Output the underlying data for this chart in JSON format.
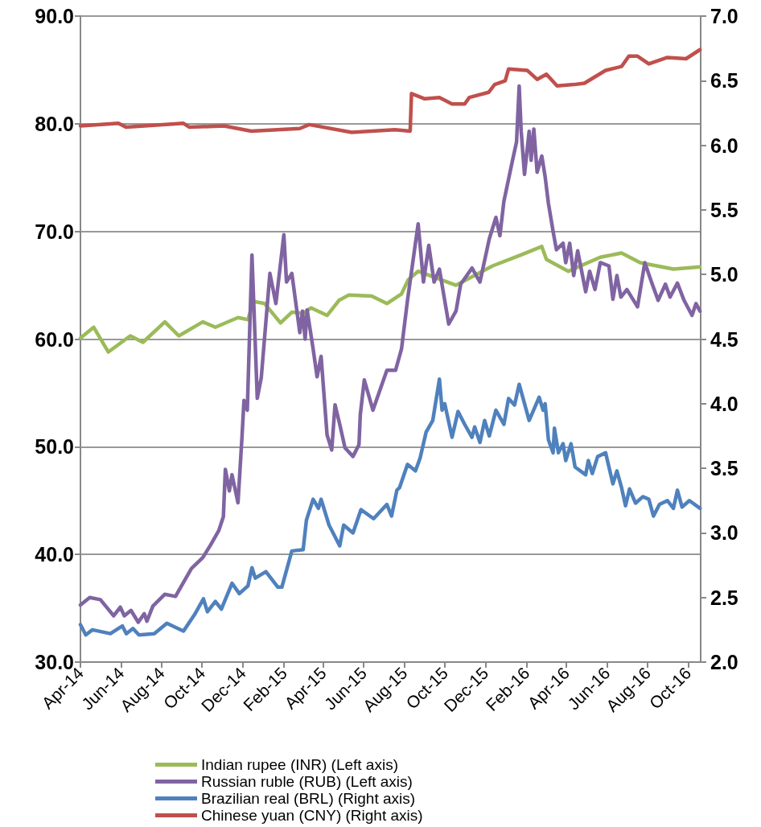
{
  "chart_data": {
    "type": "line",
    "xlim": [
      "2014-04-01",
      "2016-10-20"
    ],
    "xticks": [
      {
        "value": "2014-04-01",
        "label": "Apr-14"
      },
      {
        "value": "2014-06-01",
        "label": "Jun-14"
      },
      {
        "value": "2014-08-01",
        "label": "Aug-14"
      },
      {
        "value": "2014-10-01",
        "label": "Oct-14"
      },
      {
        "value": "2014-12-01",
        "label": "Dec-14"
      },
      {
        "value": "2015-02-01",
        "label": "Feb-15"
      },
      {
        "value": "2015-04-01",
        "label": "Apr-15"
      },
      {
        "value": "2015-06-01",
        "label": "Jun-15"
      },
      {
        "value": "2015-08-01",
        "label": "Aug-15"
      },
      {
        "value": "2015-10-01",
        "label": "Oct-15"
      },
      {
        "value": "2015-12-01",
        "label": "Dec-15"
      },
      {
        "value": "2016-02-01",
        "label": "Feb-16"
      },
      {
        "value": "2016-04-01",
        "label": "Apr-16"
      },
      {
        "value": "2016-06-01",
        "label": "Jun-16"
      },
      {
        "value": "2016-08-01",
        "label": "Aug-16"
      },
      {
        "value": "2016-10-01",
        "label": "Oct-16"
      }
    ],
    "ylim": [
      30,
      90
    ],
    "yticks": [
      {
        "value": 30,
        "label": "30.0"
      },
      {
        "value": 40,
        "label": "40.0"
      },
      {
        "value": 50,
        "label": "50.0"
      },
      {
        "value": 60,
        "label": "60.0"
      },
      {
        "value": 70,
        "label": "70.0"
      },
      {
        "value": 80,
        "label": "80.0"
      },
      {
        "value": 90,
        "label": "90.0"
      }
    ],
    "y2lim": [
      2,
      7
    ],
    "y2ticks": [
      {
        "value": 2,
        "label": "2.0"
      },
      {
        "value": 2.5,
        "label": "2.5"
      },
      {
        "value": 3,
        "label": "3.0"
      },
      {
        "value": 3.5,
        "label": "3.5"
      },
      {
        "value": 4,
        "label": "4.0"
      },
      {
        "value": 4.5,
        "label": "4.5"
      },
      {
        "value": 5,
        "label": "5.0"
      },
      {
        "value": 5.5,
        "label": "5.5"
      },
      {
        "value": 6,
        "label": "6.0"
      },
      {
        "value": 6.5,
        "label": "6.5"
      },
      {
        "value": 7,
        "label": "7.0"
      }
    ],
    "grid": "y",
    "legend": "bottom",
    "line_style": "solid",
    "series": [
      {
        "name": "Indian rupee (INR) (Left axis)",
        "color": "#9bbb59",
        "axis": "y",
        "x": [
          "2014-04-01",
          "2014-04-21",
          "2014-05-13",
          "2014-06-15",
          "2014-07-04",
          "2014-08-06",
          "2014-08-27",
          "2014-10-02",
          "2014-10-21",
          "2014-11-24",
          "2014-12-09",
          "2014-12-17",
          "2015-01-03",
          "2015-01-27",
          "2015-02-13",
          "2015-03-02",
          "2015-03-14",
          "2015-04-07",
          "2015-04-25",
          "2015-05-10",
          "2015-06-13",
          "2015-07-06",
          "2015-07-28",
          "2015-08-07",
          "2015-08-22",
          "2015-10-18",
          "2015-12-12",
          "2016-01-23",
          "2016-02-24",
          "2016-03-02",
          "2016-04-04",
          "2016-05-22",
          "2016-06-23",
          "2016-07-21",
          "2016-09-09",
          "2016-10-19"
        ],
        "values": [
          60.1,
          61.1,
          58.8,
          60.3,
          59.7,
          61.6,
          60.3,
          61.6,
          61.1,
          62.0,
          61.8,
          63.5,
          63.3,
          61.5,
          62.5,
          62.4,
          62.9,
          62.2,
          63.6,
          64.1,
          64.0,
          63.3,
          64.2,
          65.5,
          66.3,
          65.0,
          66.8,
          67.8,
          68.6,
          67.4,
          66.3,
          67.6,
          68.0,
          67.1,
          66.5,
          66.7
        ]
      },
      {
        "name": "Russian ruble (RUB) (Left axis)",
        "color": "#8064a2",
        "axis": "y",
        "x": [
          "2014-04-01",
          "2014-04-15",
          "2014-05-01",
          "2014-05-21",
          "2014-05-31",
          "2014-06-06",
          "2014-06-16",
          "2014-06-27",
          "2014-07-06",
          "2014-07-10",
          "2014-07-19",
          "2014-08-06",
          "2014-08-22",
          "2014-09-02",
          "2014-09-15",
          "2014-10-02",
          "2014-10-14",
          "2014-10-26",
          "2014-11-02",
          "2014-11-05",
          "2014-11-11",
          "2014-11-15",
          "2014-11-24",
          "2014-11-30",
          "2014-12-03",
          "2014-12-08",
          "2014-12-15",
          "2014-12-23",
          "2014-12-29",
          "2015-01-11",
          "2015-01-20",
          "2015-02-01",
          "2015-02-05",
          "2015-02-13",
          "2015-02-25",
          "2015-03-01",
          "2015-03-05",
          "2015-03-08",
          "2015-03-17",
          "2015-03-23",
          "2015-03-29",
          "2015-04-07",
          "2015-04-14",
          "2015-04-19",
          "2015-04-26",
          "2015-05-04",
          "2015-05-16",
          "2015-05-25",
          "2015-05-27",
          "2015-06-02",
          "2015-06-15",
          "2015-07-06",
          "2015-07-19",
          "2015-07-28",
          "2015-08-06",
          "2015-08-22",
          "2015-08-30",
          "2015-09-07",
          "2015-09-15",
          "2015-09-23",
          "2015-10-07",
          "2015-10-18",
          "2015-10-25",
          "2015-11-11",
          "2015-11-23",
          "2015-12-07",
          "2015-12-17",
          "2015-12-23",
          "2015-12-29",
          "2016-01-11",
          "2016-01-17",
          "2016-01-21",
          "2016-01-24",
          "2016-01-29",
          "2016-02-05",
          "2016-02-08",
          "2016-02-12",
          "2016-02-17",
          "2016-02-24",
          "2016-02-29",
          "2016-03-05",
          "2016-03-12",
          "2016-03-17",
          "2016-03-27",
          "2016-03-31",
          "2016-04-06",
          "2016-04-12",
          "2016-04-18",
          "2016-04-30",
          "2016-05-06",
          "2016-05-14",
          "2016-05-22",
          "2016-06-04",
          "2016-06-10",
          "2016-06-16",
          "2016-06-22",
          "2016-07-01",
          "2016-07-17",
          "2016-07-28",
          "2016-08-07",
          "2016-08-17",
          "2016-08-28",
          "2016-09-04",
          "2016-09-15",
          "2016-09-25",
          "2016-10-07",
          "2016-10-13",
          "2016-10-19"
        ],
        "values": [
          35.3,
          36.0,
          35.8,
          34.3,
          35.1,
          34.3,
          34.8,
          33.7,
          34.5,
          33.8,
          35.2,
          36.3,
          36.1,
          37.3,
          38.7,
          39.7,
          40.9,
          42.2,
          43.5,
          47.9,
          45.9,
          47.4,
          44.8,
          50.9,
          54.3,
          53.4,
          67.8,
          54.5,
          56.4,
          66.1,
          63.3,
          69.7,
          65.3,
          66.1,
          60.6,
          62.6,
          60.0,
          62.7,
          59.1,
          56.5,
          58.4,
          51.1,
          49.7,
          53.9,
          52.1,
          49.9,
          49.1,
          50.2,
          53.0,
          56.2,
          53.4,
          57.1,
          57.1,
          59.1,
          63.6,
          70.7,
          65.3,
          68.7,
          65.3,
          66.5,
          61.4,
          62.6,
          65.1,
          66.6,
          65.3,
          69.3,
          71.3,
          69.6,
          72.8,
          76.6,
          78.3,
          83.5,
          79.3,
          75.3,
          79.3,
          76.6,
          79.5,
          75.5,
          77.0,
          75.1,
          72.6,
          70.0,
          68.3,
          68.9,
          67.1,
          68.9,
          65.9,
          68.2,
          64.4,
          66.3,
          64.6,
          67.1,
          66.8,
          63.7,
          65.9,
          63.9,
          64.6,
          63.0,
          67.1,
          65.3,
          63.6,
          65.1,
          63.9,
          65.2,
          63.6,
          62.2,
          63.3,
          62.6
        ]
      },
      {
        "name": "Brazilian real (BRL) (Right axis)",
        "color": "#4f81bd",
        "axis": "y2",
        "x": [
          "2014-04-01",
          "2014-04-09",
          "2014-04-19",
          "2014-05-16",
          "2014-06-03",
          "2014-06-09",
          "2014-06-19",
          "2014-06-28",
          "2014-07-21",
          "2014-08-09",
          "2014-09-03",
          "2014-09-20",
          "2014-10-03",
          "2014-10-09",
          "2014-10-21",
          "2014-10-30",
          "2014-11-15",
          "2014-11-26",
          "2014-12-09",
          "2014-12-15",
          "2014-12-20",
          "2015-01-05",
          "2015-01-23",
          "2015-01-29",
          "2015-02-13",
          "2015-03-02",
          "2015-03-07",
          "2015-03-17",
          "2015-03-25",
          "2015-03-29",
          "2015-04-10",
          "2015-04-26",
          "2015-05-02",
          "2015-05-16",
          "2015-05-28",
          "2015-06-16",
          "2015-07-06",
          "2015-07-13",
          "2015-07-21",
          "2015-07-25",
          "2015-08-06",
          "2015-08-18",
          "2015-08-25",
          "2015-09-03",
          "2015-09-13",
          "2015-09-23",
          "2015-09-27",
          "2015-10-01",
          "2015-10-12",
          "2015-10-21",
          "2015-10-31",
          "2015-11-11",
          "2015-11-15",
          "2015-11-23",
          "2015-11-30",
          "2015-12-07",
          "2015-12-17",
          "2015-12-29",
          "2016-01-05",
          "2016-01-14",
          "2016-01-21",
          "2016-02-05",
          "2016-02-20",
          "2016-02-26",
          "2016-02-29",
          "2016-03-05",
          "2016-03-12",
          "2016-03-14",
          "2016-03-20",
          "2016-03-27",
          "2016-03-31",
          "2016-04-08",
          "2016-04-14",
          "2016-04-30",
          "2016-05-04",
          "2016-05-10",
          "2016-05-18",
          "2016-05-30",
          "2016-06-10",
          "2016-06-16",
          "2016-06-23",
          "2016-06-29",
          "2016-07-05",
          "2016-07-14",
          "2016-07-25",
          "2016-08-03",
          "2016-08-10",
          "2016-08-19",
          "2016-08-31",
          "2016-09-09",
          "2016-09-15",
          "2016-09-22",
          "2016-10-03",
          "2016-10-19"
        ],
        "values": [
          2.29,
          2.21,
          2.25,
          2.22,
          2.28,
          2.22,
          2.26,
          2.21,
          2.22,
          2.3,
          2.24,
          2.37,
          2.49,
          2.39,
          2.47,
          2.41,
          2.61,
          2.53,
          2.59,
          2.73,
          2.65,
          2.7,
          2.58,
          2.58,
          2.86,
          2.87,
          3.1,
          3.26,
          3.19,
          3.26,
          3.06,
          2.9,
          3.06,
          3.0,
          3.18,
          3.11,
          3.22,
          3.13,
          3.33,
          3.35,
          3.53,
          3.48,
          3.58,
          3.78,
          3.87,
          4.19,
          3.95,
          4.0,
          3.74,
          3.94,
          3.84,
          3.74,
          3.82,
          3.7,
          3.87,
          3.75,
          3.95,
          3.84,
          4.04,
          3.99,
          4.15,
          3.87,
          4.05,
          3.95,
          4.0,
          3.72,
          3.62,
          3.81,
          3.62,
          3.69,
          3.56,
          3.69,
          3.51,
          3.45,
          3.56,
          3.46,
          3.59,
          3.62,
          3.38,
          3.48,
          3.35,
          3.21,
          3.34,
          3.23,
          3.28,
          3.26,
          3.13,
          3.22,
          3.25,
          3.19,
          3.33,
          3.2,
          3.25,
          3.19
        ]
      },
      {
        "name": "Chinese yuan (CNY) (Right axis)",
        "color": "#c0504d",
        "axis": "y2",
        "x": [
          "2014-04-01",
          "2014-05-28",
          "2014-06-09",
          "2014-09-03",
          "2014-09-12",
          "2014-11-03",
          "2014-12-14",
          "2015-02-25",
          "2015-03-11",
          "2015-05-14",
          "2015-07-18",
          "2015-08-10",
          "2015-08-12",
          "2015-09-01",
          "2015-09-23",
          "2015-10-12",
          "2015-10-31",
          "2015-11-07",
          "2015-12-06",
          "2015-12-15",
          "2015-12-31",
          "2016-01-05",
          "2016-02-02",
          "2016-02-17",
          "2016-03-02",
          "2016-03-18",
          "2016-04-12",
          "2016-04-28",
          "2016-05-30",
          "2016-06-23",
          "2016-07-04",
          "2016-07-17",
          "2016-08-03",
          "2016-08-31",
          "2016-09-28",
          "2016-10-19"
        ],
        "values": [
          6.15,
          6.17,
          6.14,
          6.17,
          6.14,
          6.15,
          6.11,
          6.13,
          6.16,
          6.1,
          6.12,
          6.11,
          6.4,
          6.36,
          6.37,
          6.32,
          6.32,
          6.37,
          6.41,
          6.47,
          6.5,
          6.59,
          6.58,
          6.51,
          6.55,
          6.46,
          6.47,
          6.48,
          6.58,
          6.61,
          6.69,
          6.69,
          6.63,
          6.68,
          6.67,
          6.74
        ]
      }
    ]
  }
}
